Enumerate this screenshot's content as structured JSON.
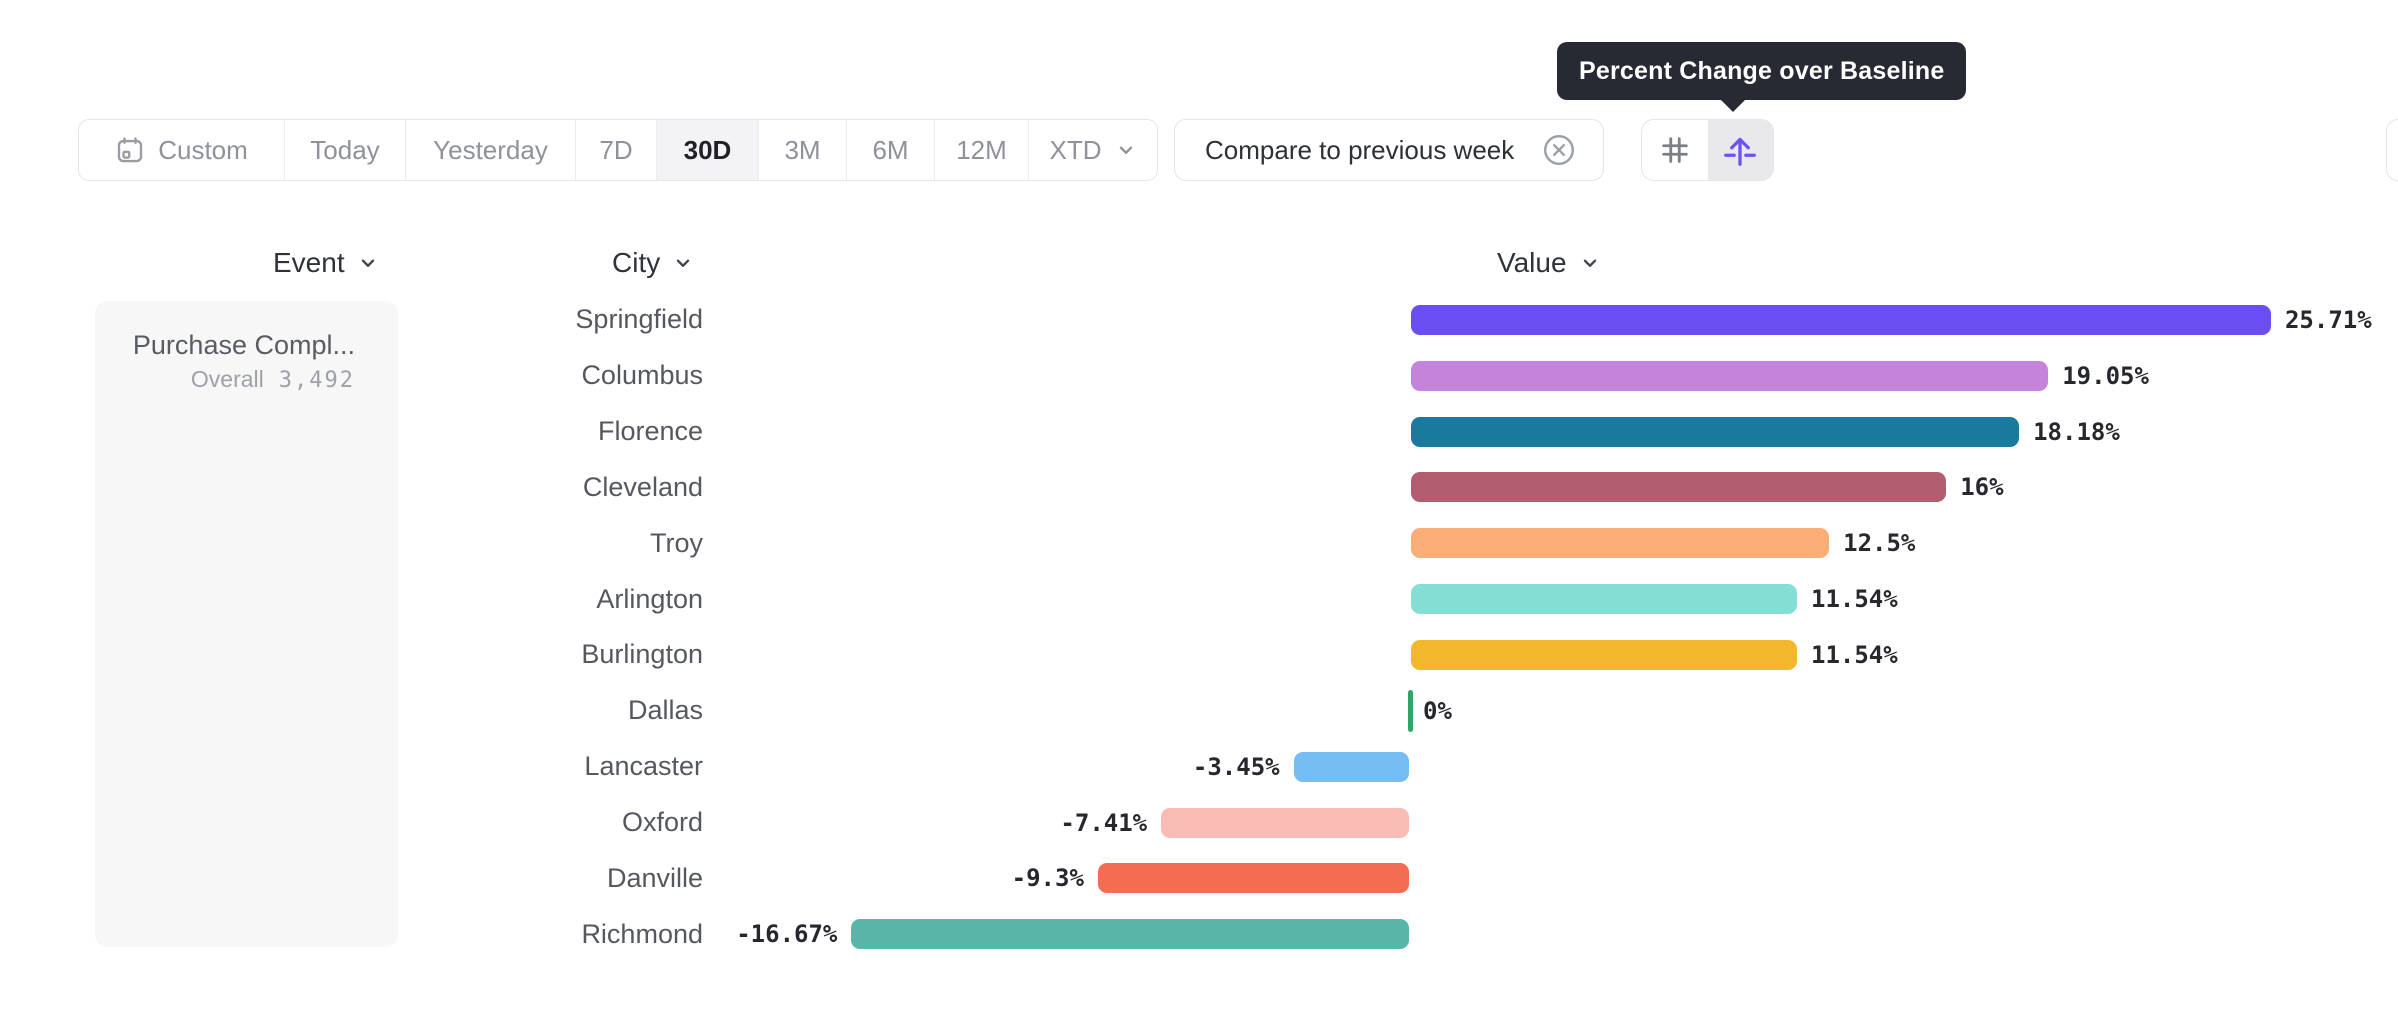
{
  "tooltip": {
    "text": "Percent Change over Baseline"
  },
  "toolbar": {
    "date_ranges": [
      {
        "label": "Custom",
        "icon": "calendar-icon",
        "active": false
      },
      {
        "label": "Today",
        "active": false
      },
      {
        "label": "Yesterday",
        "active": false
      },
      {
        "label": "7D",
        "active": false
      },
      {
        "label": "30D",
        "active": true
      },
      {
        "label": "3M",
        "active": false
      },
      {
        "label": "6M",
        "active": false
      },
      {
        "label": "12M",
        "active": false
      },
      {
        "label": "XTD",
        "chevron": true,
        "active": false
      }
    ],
    "compare_button": {
      "label": "Compare to previous week",
      "icon": "dismiss-circle-icon"
    },
    "view_toggles": [
      {
        "name": "grid-toggle",
        "icon": "grid-icon",
        "active": false
      },
      {
        "name": "baseline-toggle",
        "icon": "baseline-arrow-icon",
        "active": true
      }
    ]
  },
  "columns": {
    "event": "Event",
    "city": "City",
    "value": "Value"
  },
  "event_panel": {
    "event_name": "Purchase Compl...",
    "metric_label": "Overall",
    "metric_value": "3,492"
  },
  "chart_data": {
    "type": "bar",
    "orientation": "horizontal",
    "title": "Percent Change over Baseline",
    "unit": "%",
    "grid": false,
    "xlim": [
      -17,
      26
    ],
    "categories": [
      "Springfield",
      "Columbus",
      "Florence",
      "Cleveland",
      "Troy",
      "Arlington",
      "Burlington",
      "Dallas",
      "Lancaster",
      "Oxford",
      "Danville",
      "Richmond"
    ],
    "values": [
      25.71,
      19.05,
      18.18,
      16,
      12.5,
      11.54,
      11.54,
      0,
      -3.45,
      -7.41,
      -9.3,
      -16.67
    ],
    "labels": [
      "25.71%",
      "19.05%",
      "18.18%",
      "16%",
      "12.5%",
      "11.54%",
      "11.54%",
      "0%",
      "-3.45%",
      "-7.41%",
      "-9.3%",
      "-16.67%"
    ],
    "colors": [
      "#6B4EF2",
      "#C583DC",
      "#1A7A9E",
      "#B25C70",
      "#FBAD77",
      "#84DED4",
      "#F3B72D",
      "#35A365",
      "#75BDF3",
      "#F9BCB4",
      "#F46C52",
      "#59B5A8"
    ]
  },
  "theme": {
    "accent": "#6C52F4",
    "tooltip_bg": "#282A33",
    "border": "#E3E5E8",
    "panel_bg": "#F7F7F8",
    "text_dark": "#26282E",
    "text_gray": "#8F929A",
    "zero_tick": "#35A365"
  }
}
